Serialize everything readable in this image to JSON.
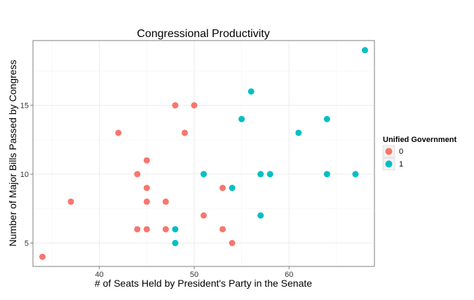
{
  "chart_data": {
    "type": "scatter",
    "title": "Congressional Productivity",
    "xlabel": "# of Seats Held by President's Party in the Senate",
    "ylabel": "Number of Major Bills Passed by Congress",
    "xlim": [
      33,
      69
    ],
    "ylim": [
      3.3,
      19.7
    ],
    "xticks": [
      40,
      50,
      60
    ],
    "yticks": [
      5,
      10,
      15
    ],
    "grid": true,
    "legend": {
      "title": "Unified Government",
      "placement": "right",
      "entries": [
        {
          "label": "0",
          "color": "#F8766D"
        },
        {
          "label": "1",
          "color": "#00BFC4"
        }
      ]
    },
    "series": [
      {
        "name": "0",
        "color": "#F8766D",
        "points": [
          [
            34,
            4
          ],
          [
            37,
            8
          ],
          [
            42,
            13
          ],
          [
            44,
            10
          ],
          [
            44,
            6
          ],
          [
            45,
            11
          ],
          [
            45,
            9
          ],
          [
            45,
            8
          ],
          [
            45,
            6
          ],
          [
            47,
            8
          ],
          [
            47,
            6
          ],
          [
            48,
            15
          ],
          [
            49,
            13
          ],
          [
            50,
            15
          ],
          [
            51,
            7
          ],
          [
            53,
            9
          ],
          [
            53,
            6
          ],
          [
            54,
            5
          ]
        ]
      },
      {
        "name": "1",
        "color": "#00BFC4",
        "points": [
          [
            48,
            6
          ],
          [
            48,
            5
          ],
          [
            51,
            10
          ],
          [
            54,
            9
          ],
          [
            55,
            14
          ],
          [
            56,
            16
          ],
          [
            57,
            10
          ],
          [
            57,
            7
          ],
          [
            58,
            10
          ],
          [
            61,
            13
          ],
          [
            64,
            14
          ],
          [
            64,
            10
          ],
          [
            67,
            10
          ],
          [
            68,
            19
          ]
        ]
      }
    ]
  }
}
